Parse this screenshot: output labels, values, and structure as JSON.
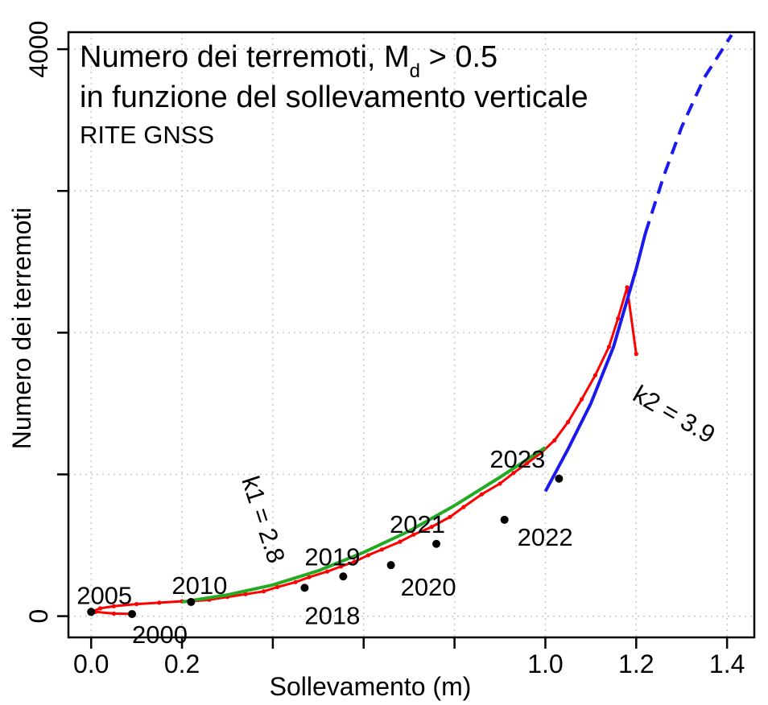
{
  "chart_data": {
    "type": "scatter",
    "title_line1": "Numero dei terremoti, M",
    "title_sub": "d",
    "title_suffix": " > 0.5",
    "title_line2": "in funzione del sollevamento verticale",
    "subtitle": "RITE GNSS",
    "xlabel": "Sollevamento (m)",
    "ylabel": "Numero dei terremoti",
    "xlim": [
      -0.05,
      1.46
    ],
    "ylim": [
      -150,
      4120
    ],
    "x_ticks": [
      0.0,
      0.2,
      0.4,
      0.6,
      0.8,
      1.0,
      1.2,
      1.4
    ],
    "x_tick_labels": [
      "0.0",
      "0.2",
      "",
      "",
      "",
      "1.0",
      "1.2",
      "1.4"
    ],
    "y_ticks": [
      0,
      1000,
      2000,
      3000,
      4000
    ],
    "y_tick_labels": [
      "0",
      "",
      "",
      "",
      "4000"
    ],
    "grid": true,
    "colors": {
      "observed": "#ff0000",
      "fit1": "#22aa22",
      "fit2": "#1a1aee",
      "points": "#000000",
      "grid": "#c8c8c8"
    },
    "series": [
      {
        "kind": "scatter-line",
        "color": "#ff0000",
        "points": [
          [
            0.09,
            15
          ],
          [
            0.05,
            18
          ],
          [
            0.01,
            30
          ],
          [
            0.0,
            30
          ],
          [
            0.02,
            55
          ],
          [
            0.05,
            70
          ],
          [
            0.1,
            85
          ],
          [
            0.15,
            95
          ],
          [
            0.2,
            105
          ],
          [
            0.22,
            105
          ],
          [
            0.26,
            115
          ],
          [
            0.3,
            135
          ],
          [
            0.34,
            155
          ],
          [
            0.38,
            175
          ],
          [
            0.41,
            205
          ],
          [
            0.45,
            240
          ],
          [
            0.48,
            275
          ],
          [
            0.52,
            315
          ],
          [
            0.55,
            350
          ],
          [
            0.58,
            385
          ],
          [
            0.61,
            430
          ],
          [
            0.64,
            470
          ],
          [
            0.68,
            525
          ],
          [
            0.71,
            575
          ],
          [
            0.75,
            630
          ],
          [
            0.79,
            700
          ],
          [
            0.82,
            770
          ],
          [
            0.86,
            860
          ],
          [
            0.9,
            935
          ],
          [
            0.93,
            1010
          ],
          [
            0.96,
            1080
          ],
          [
            0.99,
            1150
          ],
          [
            1.02,
            1240
          ],
          [
            1.05,
            1370
          ],
          [
            1.08,
            1530
          ],
          [
            1.11,
            1700
          ],
          [
            1.14,
            1900
          ],
          [
            1.16,
            2100
          ],
          [
            1.18,
            2320
          ],
          [
            1.2,
            1850
          ]
        ]
      },
      {
        "kind": "fit",
        "color": "#22aa22",
        "points": [
          [
            0.2,
            100
          ],
          [
            0.3,
            150
          ],
          [
            0.4,
            220
          ],
          [
            0.5,
            320
          ],
          [
            0.6,
            450
          ],
          [
            0.7,
            600
          ],
          [
            0.8,
            780
          ],
          [
            0.9,
            980
          ],
          [
            1.0,
            1190
          ]
        ]
      },
      {
        "kind": "fit",
        "color": "#1a1aee",
        "points": [
          [
            1.0,
            880
          ],
          [
            1.05,
            1180
          ],
          [
            1.1,
            1500
          ],
          [
            1.15,
            1900
          ],
          [
            1.2,
            2450
          ],
          [
            1.22,
            2700
          ]
        ]
      },
      {
        "kind": "fit-extrapolated",
        "color": "#1a1aee",
        "points": [
          [
            1.22,
            2700
          ],
          [
            1.26,
            3100
          ],
          [
            1.3,
            3450
          ],
          [
            1.35,
            3800
          ],
          [
            1.41,
            4100
          ]
        ]
      }
    ],
    "annotations": [
      {
        "label": "2000",
        "x": 0.09,
        "y": 15
      },
      {
        "label": "2005",
        "x": 0.0,
        "y": 30
      },
      {
        "label": "2010",
        "x": 0.22,
        "y": 100
      },
      {
        "label": "2018",
        "x": 0.47,
        "y": 200
      },
      {
        "label": "2019",
        "x": 0.555,
        "y": 280
      },
      {
        "label": "2020",
        "x": 0.66,
        "y": 360
      },
      {
        "label": "2021",
        "x": 0.76,
        "y": 510
      },
      {
        "label": "2022",
        "x": 0.91,
        "y": 680
      },
      {
        "label": "2023",
        "x": 1.03,
        "y": 970
      }
    ],
    "k_labels": [
      {
        "text": "k1 = 2.8"
      },
      {
        "text": "k2 = 3.9"
      }
    ]
  }
}
